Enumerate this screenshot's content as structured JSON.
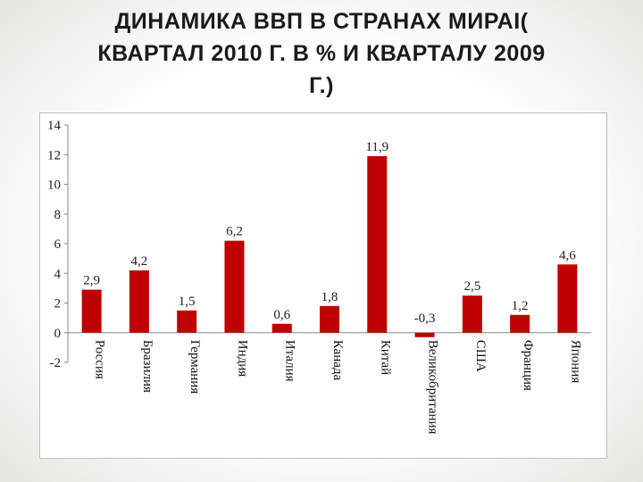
{
  "slide": {
    "title_lines": [
      "ДИНАМИКА ВВП В СТРАНАХ МИРАI(",
      "КВАРТАЛ 2010 Г. В % И КВАРТАЛУ 2009",
      "Г.)"
    ]
  },
  "chart_data": {
    "type": "bar",
    "title": "",
    "xlabel": "",
    "ylabel": "",
    "ylim": [
      -2,
      14
    ],
    "yticks": [
      -2,
      0,
      2,
      4,
      6,
      8,
      10,
      12,
      14
    ],
    "grid": false,
    "legend": "none",
    "bar_color": "#c00000",
    "categories": [
      "Россия",
      "Бразилия",
      "Германия",
      "Индия",
      "Италия",
      "Канада",
      "Китай",
      "Великобритания",
      "США",
      "Франция",
      "Япония"
    ],
    "values": [
      2.9,
      4.2,
      1.5,
      6.2,
      0.6,
      1.8,
      11.9,
      -0.3,
      2.5,
      1.2,
      4.6
    ],
    "value_labels": [
      "2,9",
      "4,2",
      "1,5",
      "6,2",
      "0,6",
      "1,8",
      "11,9",
      "-0,3",
      "2,5",
      "1,2",
      "4,6"
    ]
  }
}
